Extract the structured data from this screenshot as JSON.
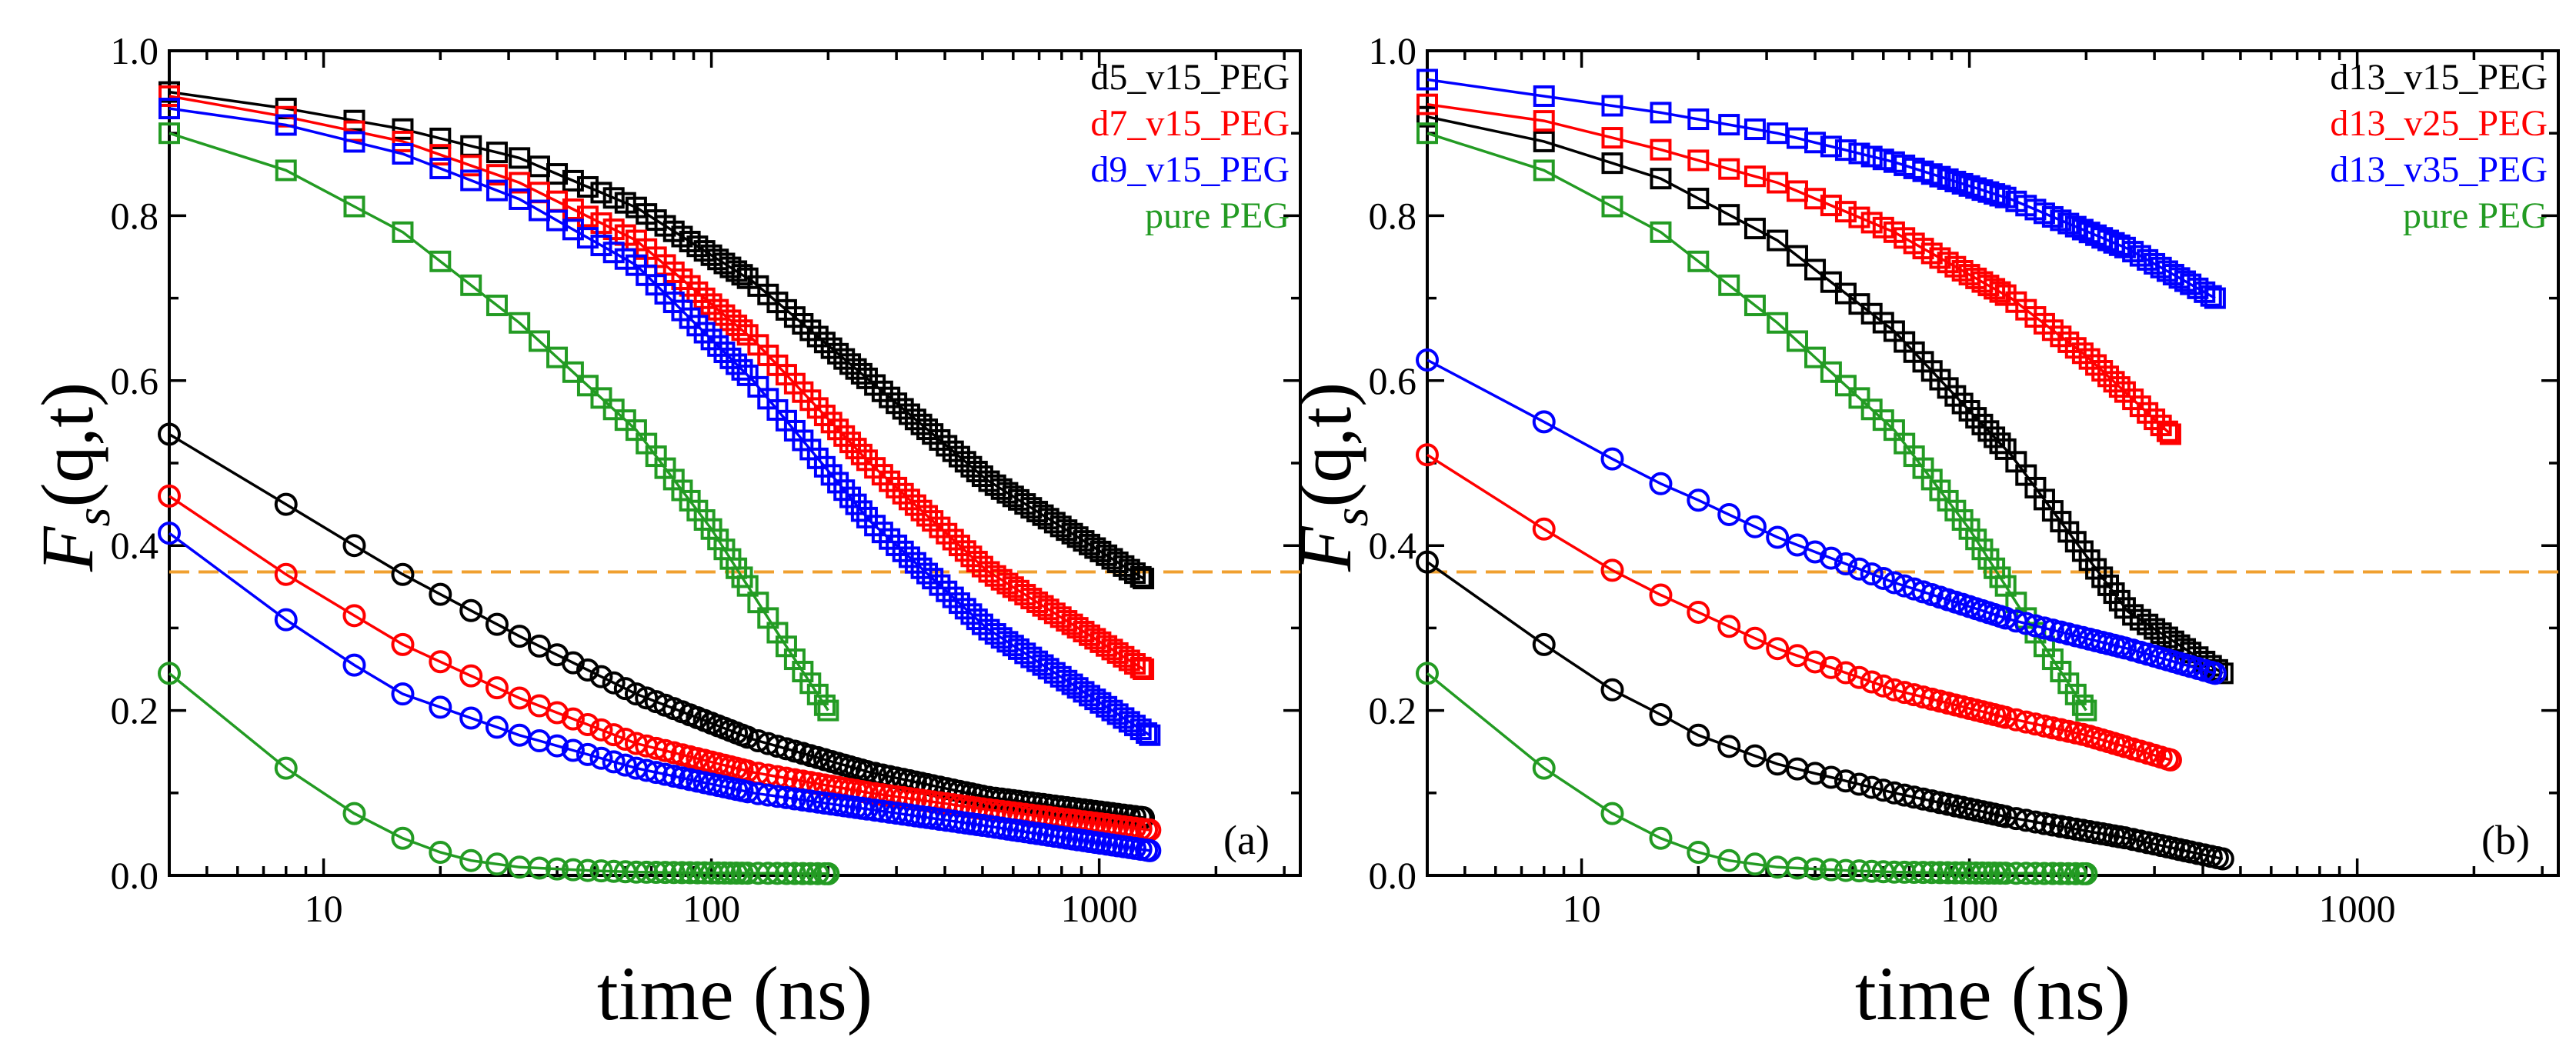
{
  "colors": {
    "black": "#000000",
    "red": "#ff0000",
    "blue": "#0000ff",
    "green": "#239b23",
    "reference": "#f0a030"
  },
  "chart_data": [
    {
      "type": "scatter",
      "panel_label": "(a)",
      "xlabel": "time (ns)",
      "ylabel_main": "F",
      "ylabel_sub": "s",
      "ylabel_args": "(q,t)",
      "xscale": "log",
      "xlim": [
        4,
        3300
      ],
      "ylim": [
        0,
        1
      ],
      "x_ticks": [
        10,
        100,
        1000
      ],
      "x_tick_labels": [
        "10",
        "100",
        "1000"
      ],
      "y_ticks": [
        0,
        0.2,
        0.4,
        0.6,
        0.8,
        1.0
      ],
      "y_tick_labels": [
        "0.0",
        "0.2",
        "0.4",
        "0.6",
        "0.8",
        "1.0"
      ],
      "reference_line_y": 0.368,
      "legend_position": "top-right",
      "legend": [
        {
          "label": "d5_v15_PEG",
          "color": "#000000"
        },
        {
          "label": "d7_v15_PEG",
          "color": "#ff0000"
        },
        {
          "label": "d9_v15_PEG",
          "color": "#0000ff"
        },
        {
          "label": "pure PEG",
          "color": "#239b23"
        }
      ],
      "series": [
        {
          "marker": "square",
          "color": "#000000",
          "t_end": 1300,
          "x": [
            4,
            8,
            16,
            32,
            64,
            128,
            256,
            512,
            1300
          ],
          "y": [
            0.95,
            0.93,
            0.905,
            0.87,
            0.81,
            0.72,
            0.6,
            0.48,
            0.36
          ]
        },
        {
          "marker": "square",
          "color": "#ff0000",
          "t_end": 1300,
          "x": [
            4,
            8,
            16,
            32,
            64,
            128,
            256,
            512,
            1300
          ],
          "y": [
            0.945,
            0.92,
            0.89,
            0.84,
            0.77,
            0.65,
            0.5,
            0.37,
            0.25
          ]
        },
        {
          "marker": "square",
          "color": "#0000ff",
          "t_end": 1350,
          "x": [
            4,
            8,
            16,
            32,
            64,
            128,
            256,
            512,
            1350
          ],
          "y": [
            0.93,
            0.91,
            0.875,
            0.82,
            0.74,
            0.6,
            0.43,
            0.3,
            0.17
          ]
        },
        {
          "marker": "square",
          "color": "#239b23",
          "t_end": 200,
          "x": [
            4,
            8,
            16,
            32,
            64,
            100,
            150,
            200
          ],
          "y": [
            0.9,
            0.855,
            0.78,
            0.67,
            0.54,
            0.42,
            0.29,
            0.2
          ]
        },
        {
          "marker": "circle",
          "color": "#000000",
          "t_end": 1300,
          "x": [
            4,
            8,
            12,
            16,
            32,
            64,
            128,
            256,
            512,
            1300
          ],
          "y": [
            0.535,
            0.45,
            0.4,
            0.365,
            0.29,
            0.22,
            0.165,
            0.125,
            0.095,
            0.07
          ]
        },
        {
          "marker": "circle",
          "color": "#ff0000",
          "t_end": 1350,
          "x": [
            4,
            8,
            12,
            16,
            32,
            64,
            128,
            256,
            512,
            1350
          ],
          "y": [
            0.46,
            0.365,
            0.315,
            0.28,
            0.215,
            0.16,
            0.125,
            0.1,
            0.08,
            0.055
          ]
        },
        {
          "marker": "circle",
          "color": "#0000ff",
          "t_end": 1350,
          "x": [
            4,
            8,
            12,
            16,
            32,
            64,
            128,
            256,
            512,
            1350
          ],
          "y": [
            0.415,
            0.31,
            0.255,
            0.22,
            0.17,
            0.13,
            0.1,
            0.08,
            0.06,
            0.03
          ]
        },
        {
          "marker": "circle",
          "color": "#239b23",
          "t_end": 200,
          "x": [
            4,
            8,
            12,
            16,
            20,
            24,
            32,
            48,
            64,
            100,
            200
          ],
          "y": [
            0.245,
            0.13,
            0.075,
            0.045,
            0.028,
            0.018,
            0.01,
            0.006,
            0.004,
            0.003,
            0.002
          ]
        }
      ]
    },
    {
      "type": "scatter",
      "panel_label": "(b)",
      "xlabel": "time (ns)",
      "ylabel_main": "F",
      "ylabel_sub": "s",
      "ylabel_args": "(q,t)",
      "xscale": "log",
      "xlim": [
        4,
        3300
      ],
      "ylim": [
        0,
        1
      ],
      "x_ticks": [
        10,
        100,
        1000
      ],
      "x_tick_labels": [
        "10",
        "100",
        "1000"
      ],
      "y_ticks": [
        0,
        0.2,
        0.4,
        0.6,
        0.8,
        1.0
      ],
      "y_tick_labels": [
        "0.0",
        "0.2",
        "0.4",
        "0.6",
        "0.8",
        "1.0"
      ],
      "reference_line_y": 0.368,
      "legend_position": "top-right",
      "legend": [
        {
          "label": "d13_v15_PEG",
          "color": "#000000"
        },
        {
          "label": "d13_v25_PEG",
          "color": "#ff0000"
        },
        {
          "label": "d13_v35_PEG",
          "color": "#0000ff"
        },
        {
          "label": "pure PEG",
          "color": "#239b23"
        }
      ],
      "series": [
        {
          "marker": "square",
          "color": "#000000",
          "t_end": 450,
          "x": [
            4,
            8,
            16,
            32,
            64,
            128,
            256,
            450
          ],
          "y": [
            0.92,
            0.89,
            0.845,
            0.77,
            0.66,
            0.51,
            0.32,
            0.245
          ]
        },
        {
          "marker": "square",
          "color": "#ff0000",
          "t_end": 330,
          "x": [
            4,
            8,
            16,
            32,
            64,
            128,
            200,
            330
          ],
          "y": [
            0.935,
            0.915,
            0.88,
            0.84,
            0.78,
            0.7,
            0.63,
            0.535
          ]
        },
        {
          "marker": "square",
          "color": "#0000ff",
          "t_end": 430,
          "x": [
            4,
            8,
            16,
            32,
            64,
            128,
            256,
            430
          ],
          "y": [
            0.965,
            0.945,
            0.925,
            0.9,
            0.865,
            0.82,
            0.76,
            0.7
          ]
        },
        {
          "marker": "square",
          "color": "#239b23",
          "t_end": 200,
          "x": [
            4,
            8,
            16,
            32,
            64,
            100,
            150,
            200
          ],
          "y": [
            0.9,
            0.855,
            0.78,
            0.67,
            0.54,
            0.42,
            0.29,
            0.2
          ]
        },
        {
          "marker": "circle",
          "color": "#000000",
          "t_end": 450,
          "x": [
            4,
            8,
            12,
            16,
            20,
            32,
            64,
            128,
            256,
            450
          ],
          "y": [
            0.38,
            0.28,
            0.225,
            0.195,
            0.17,
            0.135,
            0.1,
            0.07,
            0.045,
            0.02
          ]
        },
        {
          "marker": "circle",
          "color": "#ff0000",
          "t_end": 330,
          "x": [
            4,
            8,
            12,
            16,
            32,
            64,
            128,
            200,
            330
          ],
          "y": [
            0.51,
            0.42,
            0.37,
            0.34,
            0.275,
            0.225,
            0.19,
            0.17,
            0.14
          ]
        },
        {
          "marker": "circle",
          "color": "#0000ff",
          "t_end": 430,
          "x": [
            4,
            8,
            12,
            16,
            20,
            32,
            64,
            128,
            256,
            430
          ],
          "y": [
            0.625,
            0.55,
            0.505,
            0.475,
            0.455,
            0.41,
            0.355,
            0.31,
            0.275,
            0.245
          ]
        },
        {
          "marker": "circle",
          "color": "#239b23",
          "t_end": 200,
          "x": [
            4,
            8,
            12,
            16,
            20,
            24,
            32,
            48,
            64,
            100,
            200
          ],
          "y": [
            0.245,
            0.13,
            0.075,
            0.045,
            0.028,
            0.018,
            0.01,
            0.006,
            0.004,
            0.003,
            0.002
          ]
        }
      ]
    }
  ]
}
